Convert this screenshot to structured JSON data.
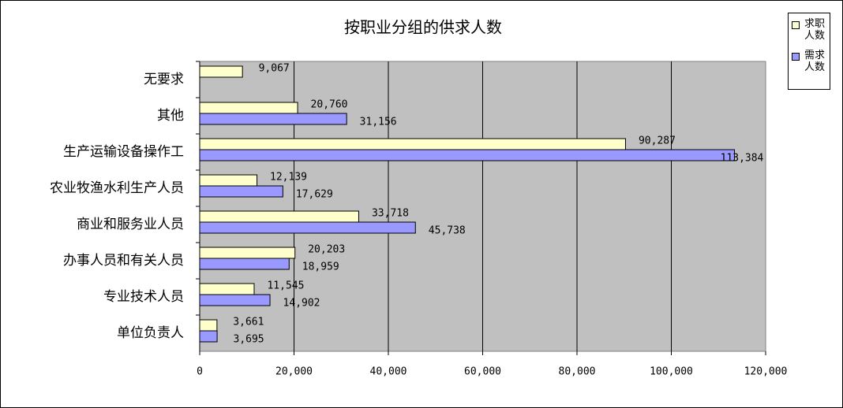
{
  "chart_data": {
    "type": "bar",
    "orientation": "horizontal",
    "title": "按职业分组的供求人数",
    "categories": [
      "无要求",
      "其他",
      "生产运输设备操作工",
      "农业牧渔水利生产人员",
      "商业和服务业人员",
      "办事人员和有关人员",
      "专业技术人员",
      "单位负责人"
    ],
    "series": [
      {
        "name": "求职人数",
        "color": "#ffffcc",
        "values": [
          9067,
          20760,
          90287,
          12139,
          33718,
          20203,
          11545,
          3661
        ],
        "value_labels": [
          "9,067",
          "20,760",
          "90,287",
          "12,139",
          "33,718",
          "20,203",
          "11,545",
          "3,661"
        ]
      },
      {
        "name": "需求人数",
        "color": "#9999ff",
        "values": [
          null,
          31156,
          113384,
          17629,
          45738,
          18959,
          14902,
          3695
        ],
        "value_labels": [
          null,
          "31,156",
          "113,384",
          "17,629",
          "45,738",
          "18,959",
          "14,902",
          "3,695"
        ]
      }
    ],
    "xlim": [
      0,
      120000
    ],
    "xticks": [
      0,
      {
        "value": 20000,
        "label": "20,000"
      },
      {
        "value": 40000,
        "label": "40,000"
      },
      {
        "value": 60000,
        "label": "60,000"
      },
      {
        "value": 80000,
        "label": "80,000"
      },
      {
        "value": 100000,
        "label": "100,000"
      },
      {
        "value": 120000,
        "label": "120,000"
      }
    ],
    "grid": true,
    "legend": "top-right"
  }
}
